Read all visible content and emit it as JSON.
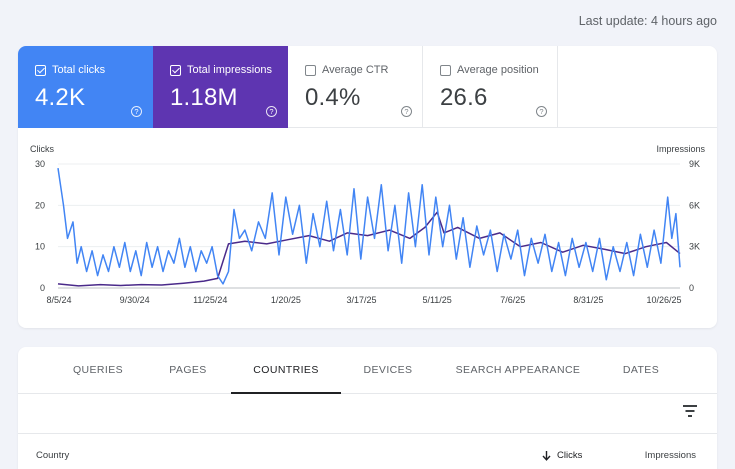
{
  "header": {
    "last_update": "Last update: 4 hours ago"
  },
  "metrics": [
    {
      "label": "Total clicks",
      "value": "4.2K",
      "checked": true,
      "color": "#4285f4"
    },
    {
      "label": "Total impressions",
      "value": "1.18M",
      "checked": true,
      "color": "#5e35b1"
    },
    {
      "label": "Average CTR",
      "value": "0.4%",
      "checked": false
    },
    {
      "label": "Average position",
      "value": "26.6",
      "checked": false
    }
  ],
  "help_glyph": "?",
  "chart_data": {
    "type": "line",
    "left_axis_title": "Clicks",
    "right_axis_title": "Impressions",
    "left_ticks": [
      "0",
      "10",
      "20",
      "30"
    ],
    "right_ticks": [
      "0",
      "3K",
      "6K",
      "9K"
    ],
    "left_range": [
      0,
      30
    ],
    "right_range": [
      0,
      9000
    ],
    "x_ticks": [
      "8/5/24",
      "9/30/24",
      "11/25/24",
      "1/20/25",
      "3/17/25",
      "5/11/25",
      "7/6/25",
      "8/31/25",
      "10/26/25"
    ],
    "x_range": [
      "2024-08-05",
      "2025-11-04"
    ],
    "grid": true,
    "series": [
      {
        "name": "Clicks",
        "axis": "left",
        "color": "#4285f4",
        "points": [
          [
            "2024-08-05",
            29
          ],
          [
            "2024-08-09",
            20
          ],
          [
            "2024-08-12",
            12
          ],
          [
            "2024-08-16",
            16
          ],
          [
            "2024-08-19",
            6
          ],
          [
            "2024-08-22",
            10
          ],
          [
            "2024-08-26",
            4
          ],
          [
            "2024-08-30",
            9
          ],
          [
            "2024-09-03",
            3
          ],
          [
            "2024-09-07",
            8
          ],
          [
            "2024-09-11",
            4
          ],
          [
            "2024-09-15",
            10
          ],
          [
            "2024-09-19",
            5
          ],
          [
            "2024-09-23",
            11
          ],
          [
            "2024-09-27",
            4
          ],
          [
            "2024-10-01",
            9
          ],
          [
            "2024-10-05",
            3
          ],
          [
            "2024-10-09",
            11
          ],
          [
            "2024-10-13",
            5
          ],
          [
            "2024-10-17",
            10
          ],
          [
            "2024-10-21",
            4
          ],
          [
            "2024-10-25",
            9
          ],
          [
            "2024-10-29",
            6
          ],
          [
            "2024-11-02",
            12
          ],
          [
            "2024-11-06",
            5
          ],
          [
            "2024-11-10",
            10
          ],
          [
            "2024-11-14",
            4
          ],
          [
            "2024-11-18",
            9
          ],
          [
            "2024-11-22",
            6
          ],
          [
            "2024-11-26",
            10
          ],
          [
            "2024-11-30",
            3
          ],
          [
            "2024-12-04",
            1
          ],
          [
            "2024-12-08",
            4
          ],
          [
            "2024-12-12",
            19
          ],
          [
            "2024-12-16",
            12
          ],
          [
            "2024-12-20",
            14
          ],
          [
            "2024-12-25",
            9
          ],
          [
            "2024-12-30",
            16
          ],
          [
            "2025-01-04",
            12
          ],
          [
            "2025-01-09",
            23
          ],
          [
            "2025-01-14",
            8
          ],
          [
            "2025-01-19",
            22
          ],
          [
            "2025-01-24",
            13
          ],
          [
            "2025-01-29",
            20
          ],
          [
            "2025-02-03",
            6
          ],
          [
            "2025-02-08",
            18
          ],
          [
            "2025-02-13",
            10
          ],
          [
            "2025-02-18",
            21
          ],
          [
            "2025-02-23",
            9
          ],
          [
            "2025-02-28",
            19
          ],
          [
            "2025-03-05",
            8
          ],
          [
            "2025-03-10",
            24
          ],
          [
            "2025-03-15",
            7
          ],
          [
            "2025-03-20",
            22
          ],
          [
            "2025-03-25",
            12
          ],
          [
            "2025-03-30",
            25
          ],
          [
            "2025-04-04",
            9
          ],
          [
            "2025-04-09",
            20
          ],
          [
            "2025-04-14",
            6
          ],
          [
            "2025-04-19",
            23
          ],
          [
            "2025-04-24",
            10
          ],
          [
            "2025-04-29",
            25
          ],
          [
            "2025-05-04",
            8
          ],
          [
            "2025-05-09",
            22
          ],
          [
            "2025-05-14",
            10
          ],
          [
            "2025-05-19",
            20
          ],
          [
            "2025-05-24",
            7
          ],
          [
            "2025-05-29",
            17
          ],
          [
            "2025-06-03",
            5
          ],
          [
            "2025-06-08",
            15
          ],
          [
            "2025-06-13",
            8
          ],
          [
            "2025-06-18",
            14
          ],
          [
            "2025-06-23",
            4
          ],
          [
            "2025-06-28",
            13
          ],
          [
            "2025-07-03",
            7
          ],
          [
            "2025-07-08",
            14
          ],
          [
            "2025-07-13",
            3
          ],
          [
            "2025-07-18",
            12
          ],
          [
            "2025-07-23",
            6
          ],
          [
            "2025-07-28",
            13
          ],
          [
            "2025-08-02",
            4
          ],
          [
            "2025-08-07",
            11
          ],
          [
            "2025-08-12",
            3
          ],
          [
            "2025-08-17",
            12
          ],
          [
            "2025-08-22",
            5
          ],
          [
            "2025-08-27",
            11
          ],
          [
            "2025-09-01",
            4
          ],
          [
            "2025-09-06",
            12
          ],
          [
            "2025-09-11",
            2
          ],
          [
            "2025-09-16",
            10
          ],
          [
            "2025-09-21",
            4
          ],
          [
            "2025-09-26",
            11
          ],
          [
            "2025-10-01",
            3
          ],
          [
            "2025-10-06",
            13
          ],
          [
            "2025-10-11",
            5
          ],
          [
            "2025-10-16",
            14
          ],
          [
            "2025-10-21",
            6
          ],
          [
            "2025-10-26",
            22
          ],
          [
            "2025-10-29",
            12
          ],
          [
            "2025-11-01",
            18
          ],
          [
            "2025-11-04",
            5
          ]
        ]
      },
      {
        "name": "Impressions",
        "axis": "right",
        "color": "#4a2a8a",
        "points": [
          [
            "2024-08-05",
            300
          ],
          [
            "2024-08-20",
            150
          ],
          [
            "2024-09-05",
            250
          ],
          [
            "2024-09-20",
            180
          ],
          [
            "2024-10-05",
            250
          ],
          [
            "2024-10-20",
            220
          ],
          [
            "2024-11-05",
            350
          ],
          [
            "2024-11-20",
            500
          ],
          [
            "2024-11-30",
            700
          ],
          [
            "2024-12-08",
            3200
          ],
          [
            "2024-12-20",
            3400
          ],
          [
            "2025-01-05",
            3200
          ],
          [
            "2025-01-20",
            3500
          ],
          [
            "2025-02-05",
            3800
          ],
          [
            "2025-02-20",
            3400
          ],
          [
            "2025-03-05",
            4000
          ],
          [
            "2025-03-20",
            3800
          ],
          [
            "2025-04-05",
            4200
          ],
          [
            "2025-04-20",
            3600
          ],
          [
            "2025-05-01",
            4400
          ],
          [
            "2025-05-10",
            5500
          ],
          [
            "2025-05-15",
            4000
          ],
          [
            "2025-05-25",
            4400
          ],
          [
            "2025-06-10",
            3600
          ],
          [
            "2025-06-25",
            4000
          ],
          [
            "2025-07-10",
            3000
          ],
          [
            "2025-07-25",
            3300
          ],
          [
            "2025-08-10",
            2600
          ],
          [
            "2025-08-25",
            3100
          ],
          [
            "2025-09-10",
            2800
          ],
          [
            "2025-09-25",
            2500
          ],
          [
            "2025-10-10",
            3000
          ],
          [
            "2025-10-25",
            3300
          ],
          [
            "2025-11-04",
            2500
          ]
        ]
      }
    ]
  },
  "tabs": [
    {
      "label": "QUERIES"
    },
    {
      "label": "PAGES"
    },
    {
      "label": "COUNTRIES",
      "active": true
    },
    {
      "label": "DEVICES"
    },
    {
      "label": "SEARCH APPEARANCE"
    },
    {
      "label": "DATES"
    }
  ],
  "table": {
    "columns": [
      {
        "label": "Country"
      },
      {
        "label": "Clicks",
        "sorted": "desc"
      },
      {
        "label": "Impressions"
      }
    ]
  },
  "icons": {
    "filter": "filter-icon",
    "sort": "arrow-down-icon",
    "help": "help-circle-icon",
    "checkbox": "checkbox-icon"
  }
}
